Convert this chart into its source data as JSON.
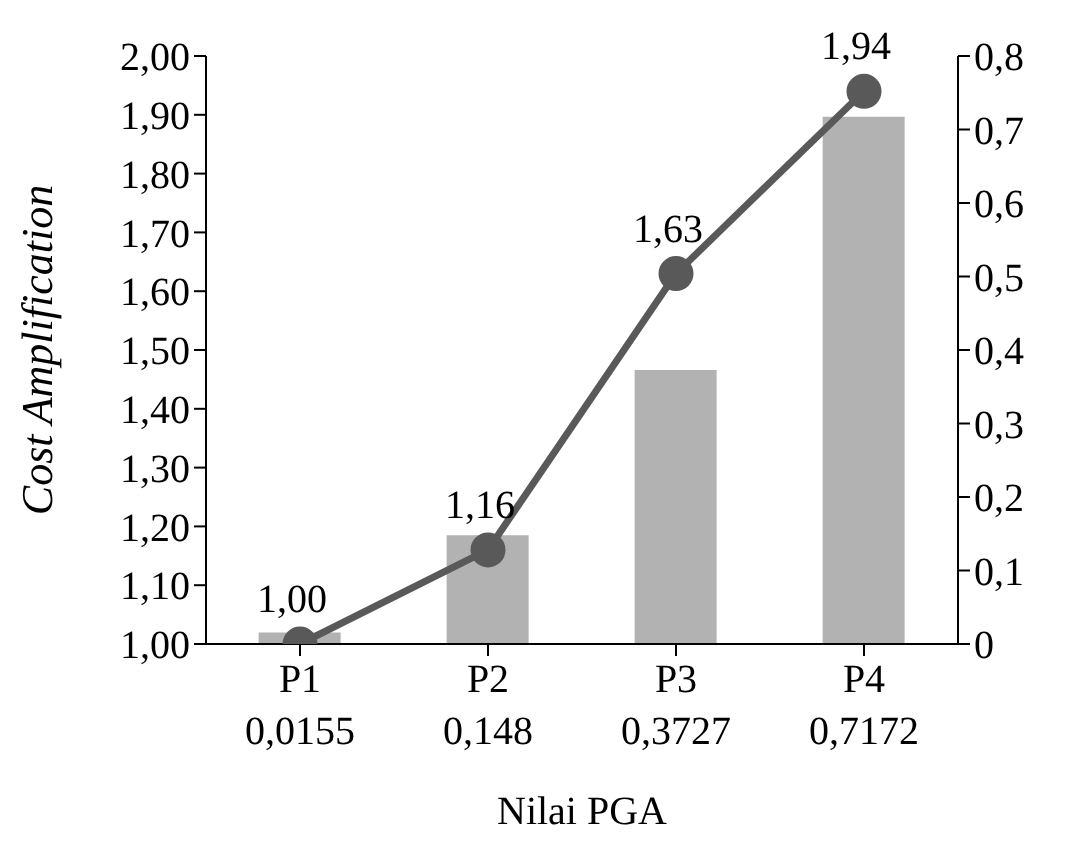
{
  "chart_data": {
    "type": "bar",
    "xlabel": "Nilai PGA",
    "ylabel": "Cost Amplification",
    "categories": [
      "P1\n0,0155",
      "P2\n0,148",
      "P3\n0,3727",
      "P4\n0,7172"
    ],
    "series": [
      {
        "axis": "y2",
        "color": "#b2b2b2",
        "values": [
          0.0155,
          0.148,
          0.3727,
          0.7172
        ]
      },
      {
        "type": "line",
        "axis": "y",
        "color": "#595959",
        "values": [
          1.0,
          1.16,
          1.63,
          1.94
        ],
        "value_labels": [
          "1,00",
          "1,16",
          "1,63",
          "1,94"
        ],
        "marker": "circle",
        "line_style": "solid"
      }
    ],
    "ylim": [
      1.0,
      2.0
    ],
    "yticks": [
      {
        "value": 1.0,
        "label": "1,00"
      },
      {
        "value": 1.1,
        "label": "1,10"
      },
      {
        "value": 1.2,
        "label": "1,20"
      },
      {
        "value": 1.3,
        "label": "1,30"
      },
      {
        "value": 1.4,
        "label": "1,40"
      },
      {
        "value": 1.5,
        "label": "1,50"
      },
      {
        "value": 1.6,
        "label": "1,60"
      },
      {
        "value": 1.7,
        "label": "1,70"
      },
      {
        "value": 1.8,
        "label": "1,80"
      },
      {
        "value": 1.9,
        "label": "1,90"
      },
      {
        "value": 2.0,
        "label": "2,00"
      }
    ],
    "y2lim": [
      0,
      0.8
    ],
    "y2ticks": [
      0,
      {
        "value": 0.1,
        "label": "0,1"
      },
      {
        "value": 0.2,
        "label": "0,2"
      },
      {
        "value": 0.3,
        "label": "0,3"
      },
      {
        "value": 0.4,
        "label": "0,4"
      },
      {
        "value": 0.5,
        "label": "0,5"
      },
      {
        "value": 0.6,
        "label": "0,6"
      },
      {
        "value": 0.7,
        "label": "0,7"
      },
      {
        "value": 0.8,
        "label": "0,8"
      }
    ],
    "grid": false,
    "legend": false
  }
}
